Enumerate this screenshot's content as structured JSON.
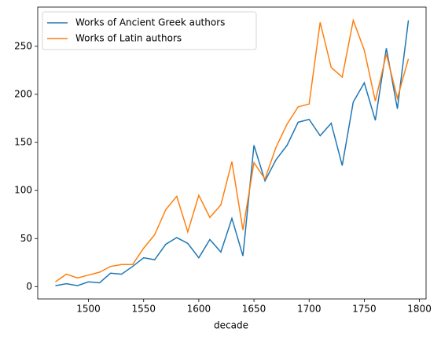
{
  "chart_data": {
    "type": "line",
    "xlabel": "decade",
    "x": [
      1470,
      1480,
      1490,
      1500,
      1510,
      1520,
      1530,
      1540,
      1550,
      1560,
      1570,
      1580,
      1590,
      1600,
      1610,
      1620,
      1630,
      1640,
      1650,
      1660,
      1670,
      1680,
      1690,
      1700,
      1710,
      1720,
      1730,
      1740,
      1750,
      1760,
      1770,
      1780,
      1790
    ],
    "series": [
      {
        "name": "Works of Ancient Greek authors",
        "color": "#1f77b4",
        "values": [
          1,
          3,
          1,
          5,
          4,
          14,
          13,
          21,
          30,
          28,
          44,
          51,
          45,
          30,
          49,
          36,
          71,
          32,
          147,
          110,
          132,
          147,
          171,
          174,
          157,
          170,
          126,
          192,
          212,
          173,
          248,
          185,
          277
        ]
      },
      {
        "name": "Works of Latin authors",
        "color": "#ff7f0e",
        "values": [
          5,
          13,
          9,
          12,
          15,
          21,
          23,
          23,
          40,
          54,
          80,
          94,
          57,
          95,
          72,
          85,
          130,
          59,
          129,
          112,
          145,
          169,
          187,
          190,
          275,
          228,
          218,
          277,
          246,
          193,
          242,
          196,
          237
        ]
      }
    ],
    "xlim": [
      1454,
      1806
    ],
    "ylim": [
      -12.8,
      290.8
    ],
    "xticks": [
      1500,
      1550,
      1600,
      1650,
      1700,
      1750,
      1800
    ],
    "yticks": [
      0,
      50,
      100,
      150,
      200,
      250
    ],
    "legend": "upper left",
    "grid": false
  }
}
